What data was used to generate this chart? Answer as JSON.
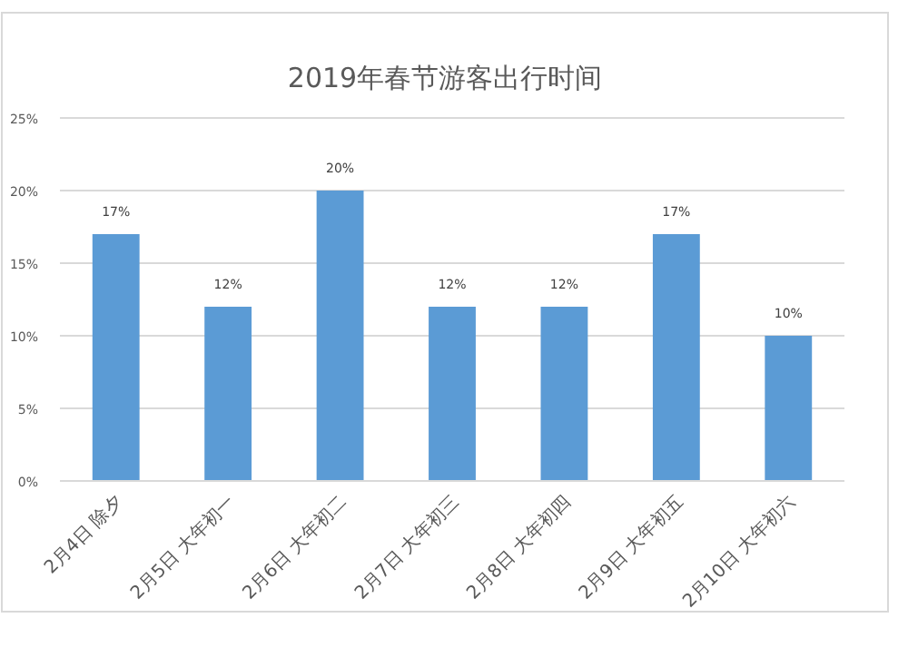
{
  "chart_data": {
    "type": "bar",
    "title": "2019年春节游客出行时间",
    "categories": [
      "2月4日 除夕",
      "2月5日 大年初一",
      "2月6日 大年初二",
      "2月7日 大年初三",
      "2月8日 大年初四",
      "2月9日 大年初五",
      "2月10日 大年初六"
    ],
    "values": [
      17,
      12,
      20,
      12,
      12,
      17,
      10
    ],
    "color": "#5b9bd5",
    "ylim": [
      0,
      25
    ],
    "yticks": [
      {
        "value": 0,
        "label": "0%"
      },
      {
        "value": 5,
        "label": "5%"
      },
      {
        "value": 10,
        "label": "10%"
      },
      {
        "value": 15,
        "label": "15%"
      },
      {
        "value": 20,
        "label": "20%"
      },
      {
        "value": 25,
        "label": "25%"
      }
    ],
    "grid": "y",
    "data_labels": true,
    "value_labels": [
      "17%",
      "12%",
      "20%",
      "12%",
      "12%",
      "17%",
      "10%"
    ]
  }
}
